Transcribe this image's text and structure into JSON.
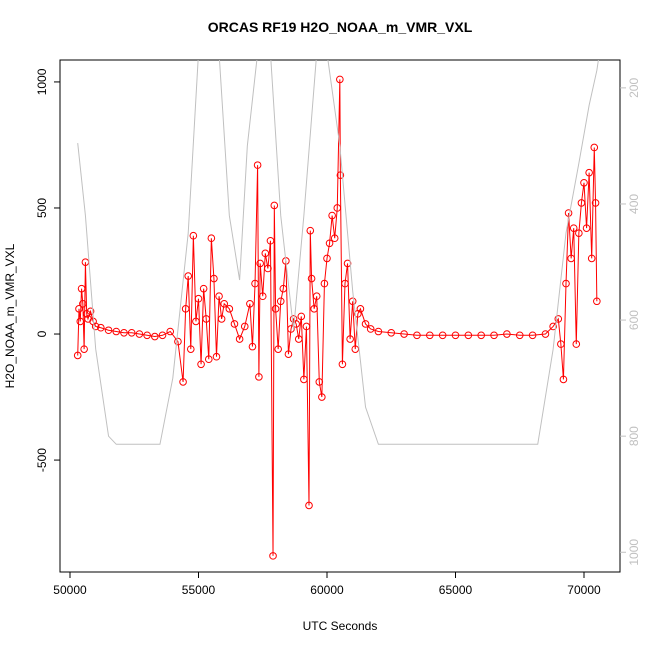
{
  "chart_data": {
    "type": "scatter",
    "title": "ORCAS RF19 H2O_NOAA_m_VMR_VXL",
    "x_label": "UTC Seconds",
    "y_label": "H2O_NOAA_m_VMR_VXL",
    "xlim": [
      49611,
      71401
    ],
    "ylim": [
      -944,
      1087
    ],
    "y2lim": [
      1034,
      152
    ],
    "xticks": [
      50000,
      55000,
      60000,
      65000,
      70000
    ],
    "yticks": [
      -500,
      0,
      500,
      1000
    ],
    "y2ticks": [
      200,
      400,
      600,
      800,
      1000
    ],
    "series": [
      {
        "color": "#ff0000",
        "x": [
          50300,
          50350,
          50400,
          50450,
          50500,
          50550,
          50600,
          50650,
          50700,
          50800,
          50900,
          51000,
          51200,
          51500,
          51800,
          52100,
          52400,
          52700,
          53000,
          53300,
          53600,
          53900,
          54200,
          54400,
          54500,
          54600,
          54700,
          54800,
          54900,
          55000,
          55100,
          55200,
          55300,
          55400,
          55500,
          55600,
          55700,
          55800,
          55900,
          56000,
          56200,
          56400,
          56600,
          56800,
          57000,
          57100,
          57200,
          57300,
          57350,
          57400,
          57500,
          57600,
          57700,
          57800,
          57900,
          57950,
          58000,
          58100,
          58200,
          58300,
          58400,
          58500,
          58600,
          58700,
          58800,
          58900,
          59000,
          59100,
          59200,
          59300,
          59350,
          59400,
          59500,
          59600,
          59700,
          59800,
          59900,
          60000,
          60100,
          60200,
          60300,
          60400,
          60500,
          60520,
          60600,
          60700,
          60800,
          60900,
          61000,
          61100,
          61200,
          61300,
          61500,
          61700,
          62000,
          62500,
          63000,
          63500,
          64000,
          64500,
          65000,
          65500,
          66000,
          66500,
          67000,
          67500,
          68000,
          68500,
          68800,
          69000,
          69100,
          69200,
          69300,
          69400,
          69500,
          69600,
          69700,
          69800,
          69900,
          70000,
          70100,
          70200,
          70300,
          70400,
          70450,
          70500
        ],
        "values": [
          -85,
          100,
          50,
          180,
          120,
          -60,
          285,
          80,
          60,
          90,
          50,
          30,
          25,
          15,
          10,
          5,
          5,
          0,
          -5,
          -10,
          -5,
          10,
          -30,
          -190,
          100,
          230,
          -60,
          390,
          50,
          140,
          -120,
          180,
          60,
          -100,
          380,
          220,
          -90,
          150,
          60,
          120,
          100,
          40,
          -20,
          30,
          120,
          -50,
          200,
          670,
          -170,
          280,
          150,
          320,
          260,
          370,
          -880,
          510,
          100,
          -60,
          130,
          180,
          290,
          -80,
          20,
          60,
          40,
          -20,
          70,
          -180,
          30,
          -680,
          410,
          220,
          100,
          150,
          -190,
          -250,
          200,
          300,
          360,
          470,
          380,
          500,
          1010,
          630,
          -120,
          200,
          280,
          -20,
          130,
          -60,
          80,
          100,
          40,
          20,
          10,
          5,
          0,
          -5,
          -5,
          -5,
          -5,
          -5,
          -5,
          -5,
          0,
          -5,
          -5,
          0,
          30,
          60,
          -40,
          -180,
          200,
          480,
          300,
          420,
          -40,
          400,
          520,
          600,
          420,
          640,
          300,
          740,
          520,
          130
        ]
      },
      {
        "color": "#c0c0c0",
        "axis": "y2",
        "x": [
          50300,
          50600,
          51000,
          51500,
          51800,
          53500,
          54000,
          54600,
          55000,
          55800,
          56200,
          56600,
          56900,
          57300,
          57800,
          58200,
          58700,
          59100,
          59600,
          60000,
          60500,
          61000,
          61500,
          62000,
          68200,
          68800,
          69300,
          69800,
          70200,
          70500,
          70600
        ],
        "values": [
          295,
          420,
          650,
          800,
          814,
          814,
          700,
          450,
          140,
          140,
          420,
          531,
          300,
          140,
          140,
          420,
          617,
          420,
          140,
          140,
          300,
          550,
          750,
          814,
          814,
          650,
          450,
          330,
          230,
          170,
          140
        ]
      }
    ]
  }
}
